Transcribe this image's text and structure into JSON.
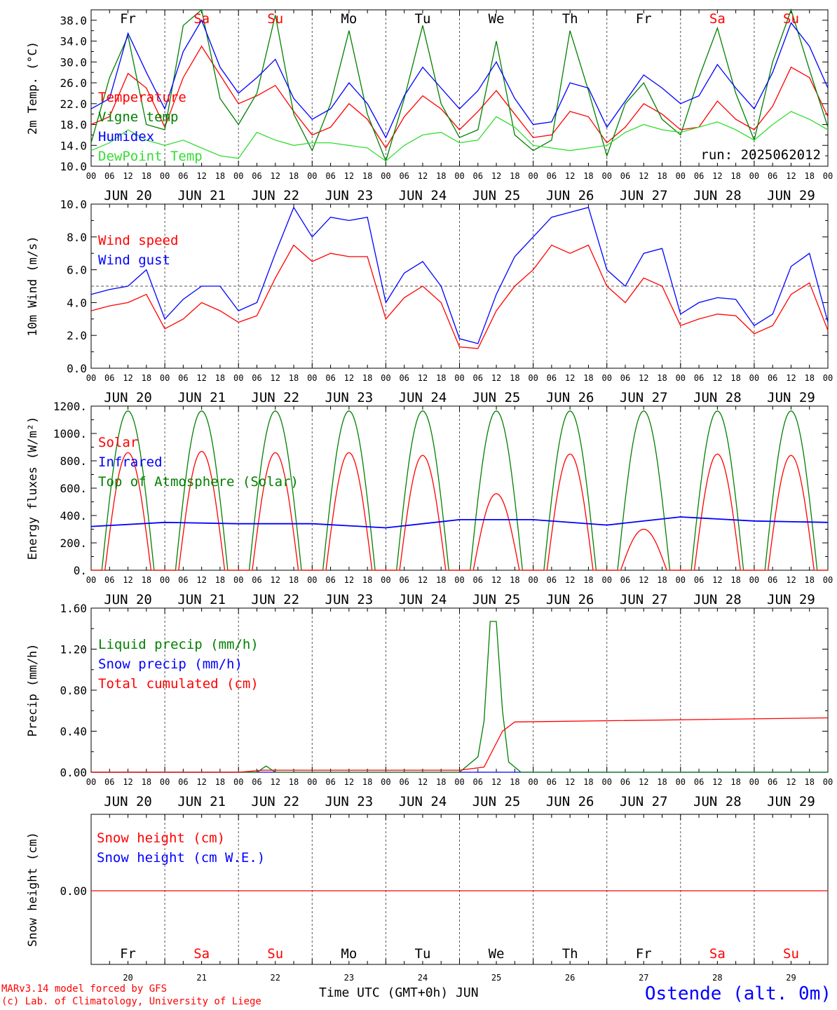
{
  "location": "Ostende (alt. 0m)",
  "footer": {
    "line1": "MARv3.14 model forced by GFS",
    "line2": "(c) Lab. of Climatology, University of Liege",
    "xaxis_title": "Time UTC (GMT+0h) JUN"
  },
  "colors": {
    "red": "#ff0000",
    "blue": "#0000ff",
    "green": "#008000",
    "lightgreen": "#33dd33",
    "grid": "#555555"
  },
  "time_axis": {
    "days": [
      "JUN 20",
      "JUN 21",
      "JUN 22",
      "JUN 23",
      "JUN 24",
      "JUN 25",
      "JUN 26",
      "JUN 27",
      "JUN 28",
      "JUN 29"
    ],
    "hours": [
      "00",
      "06",
      "12",
      "18"
    ],
    "end_hour": "00",
    "weekdays": [
      "Fr",
      "Sa",
      "Su",
      "Mo",
      "Tu",
      "We",
      "Th",
      "Fr",
      "Sa",
      "Su"
    ],
    "weekend_indices": [
      1,
      2,
      8,
      9
    ],
    "day_numbers": [
      "20",
      "21",
      "22",
      "23",
      "24",
      "25",
      "26",
      "27",
      "28",
      "29"
    ]
  },
  "chart_data": [
    {
      "id": "temperature",
      "type": "line",
      "ylabel": "2m Temp. (°C)",
      "ylim": [
        10,
        40
      ],
      "yticks": [
        "10.0",
        "14.0",
        "18.0",
        "22.0",
        "26.0",
        "30.0",
        "34.0",
        "38.0"
      ],
      "ytick_values": [
        10,
        14,
        18,
        22,
        26,
        30,
        34,
        38
      ],
      "run_label": "run: 2025062012",
      "x_hours": [
        0,
        6,
        12,
        18,
        24,
        30,
        36,
        42,
        48,
        54,
        60,
        66,
        72,
        78,
        84,
        90,
        96,
        102,
        108,
        114,
        120,
        126,
        132,
        138,
        144,
        150,
        156,
        162,
        168,
        174,
        180,
        186,
        192,
        198,
        204,
        210,
        216,
        222,
        228,
        234,
        240
      ],
      "series": [
        {
          "name": "Temperature",
          "color": "#ff0000",
          "values": [
            18.0,
            19.5,
            27.8,
            25.0,
            17.5,
            27.0,
            33.0,
            27.5,
            22.0,
            23.5,
            25.5,
            20.5,
            16.0,
            17.5,
            22.0,
            19.0,
            13.5,
            19.5,
            23.5,
            21.0,
            17.0,
            20.5,
            24.5,
            20.0,
            15.5,
            16.0,
            20.5,
            19.5,
            14.5,
            17.5,
            22.0,
            20.0,
            17.0,
            17.5,
            22.5,
            19.0,
            17.0,
            21.5,
            29.0,
            27.0,
            19.5
          ]
        },
        {
          "name": "Vigne temp",
          "color": "#008000",
          "values": [
            14.5,
            27.0,
            35.0,
            18.0,
            17.0,
            37.0,
            40.0,
            23.0,
            18.0,
            24.0,
            39.0,
            20.0,
            13.0,
            22.0,
            36.0,
            20.0,
            11.0,
            23.0,
            37.0,
            22.0,
            15.5,
            17.0,
            34.0,
            16.0,
            13.0,
            15.0,
            36.0,
            24.5,
            12.0,
            22.0,
            26.0,
            19.0,
            16.0,
            27.0,
            36.5,
            24.0,
            15.0,
            30.0,
            40.0,
            28.5,
            17.5
          ]
        },
        {
          "name": "Humidex",
          "color": "#0000ff",
          "values": [
            21.0,
            23.0,
            35.5,
            28.0,
            21.0,
            32.0,
            38.0,
            29.0,
            24.0,
            27.0,
            30.5,
            23.0,
            19.0,
            21.0,
            26.0,
            22.0,
            15.5,
            23.5,
            29.0,
            25.0,
            21.0,
            24.5,
            30.0,
            23.0,
            18.0,
            18.5,
            26.0,
            25.0,
            17.5,
            22.5,
            27.5,
            25.0,
            22.0,
            23.5,
            29.5,
            25.0,
            21.0,
            28.0,
            37.5,
            33.0,
            25.0
          ]
        },
        {
          "name": "DewPoint Temp",
          "color": "#33dd33",
          "values": [
            13.0,
            14.5,
            17.0,
            15.0,
            14.0,
            15.0,
            13.5,
            12.0,
            11.5,
            16.5,
            15.0,
            14.0,
            14.5,
            14.5,
            14.0,
            13.5,
            11.0,
            14.0,
            16.0,
            16.5,
            14.5,
            15.0,
            19.5,
            17.5,
            14.0,
            13.5,
            13.0,
            13.5,
            14.0,
            16.5,
            18.0,
            17.0,
            16.5,
            17.5,
            18.5,
            17.0,
            15.0,
            18.0,
            20.5,
            19.0,
            17.0
          ]
        }
      ]
    },
    {
      "id": "wind",
      "type": "line",
      "ylabel": "10m Wind (m/s)",
      "ylim": [
        0,
        10
      ],
      "yticks": [
        "0.0",
        "2.0",
        "4.0",
        "6.0",
        "8.0",
        "10.0"
      ],
      "ytick_values": [
        0,
        2,
        4,
        6,
        8,
        10
      ],
      "reference_line": 5,
      "x_hours": [
        0,
        6,
        12,
        18,
        24,
        30,
        36,
        42,
        48,
        54,
        60,
        66,
        72,
        78,
        84,
        90,
        96,
        102,
        108,
        114,
        120,
        126,
        132,
        138,
        144,
        150,
        156,
        162,
        168,
        174,
        180,
        186,
        192,
        198,
        204,
        210,
        216,
        222,
        228,
        234,
        240
      ],
      "series": [
        {
          "name": "Wind speed",
          "color": "#ff0000",
          "values": [
            3.5,
            3.8,
            4.0,
            4.5,
            2.4,
            3.0,
            4.0,
            3.5,
            2.8,
            3.2,
            5.5,
            7.5,
            6.5,
            7.0,
            6.8,
            6.8,
            3.0,
            4.3,
            5.0,
            4.0,
            1.3,
            1.2,
            3.5,
            5.0,
            6.0,
            7.5,
            7.0,
            7.5,
            5.0,
            4.0,
            5.5,
            5.0,
            2.6,
            3.0,
            3.3,
            3.2,
            2.1,
            2.6,
            4.5,
            5.2,
            2.3
          ]
        },
        {
          "name": "Wind gust",
          "color": "#0000ff",
          "values": [
            4.5,
            4.8,
            5.0,
            6.0,
            3.0,
            4.2,
            5.0,
            5.0,
            3.5,
            4.0,
            7.0,
            9.8,
            8.0,
            9.2,
            9.0,
            9.2,
            4.0,
            5.8,
            6.5,
            5.0,
            1.8,
            1.5,
            4.5,
            6.8,
            8.0,
            9.2,
            9.5,
            9.8,
            6.0,
            5.0,
            7.0,
            7.3,
            3.3,
            4.0,
            4.3,
            4.2,
            2.6,
            3.3,
            6.2,
            7.0,
            2.8
          ]
        }
      ]
    },
    {
      "id": "energy",
      "type": "line",
      "ylabel": "Energy fluxes (W/m²)",
      "ylim": [
        0,
        1200
      ],
      "yticks": [
        "0.",
        "200.",
        "400.",
        "600.",
        "800.",
        "1000.",
        "1200."
      ],
      "ytick_values": [
        0,
        200,
        400,
        600,
        800,
        1000,
        1200
      ],
      "day_peaks": {
        "solar": [
          860,
          870,
          860,
          860,
          840,
          560,
          850,
          300,
          850,
          840
        ],
        "toa": [
          1165,
          1165,
          1165,
          1165,
          1165,
          1165,
          1165,
          1165,
          1165,
          1165
        ]
      },
      "series": [
        {
          "name": "Solar",
          "color": "#ff0000"
        },
        {
          "name": "Infrared",
          "color": "#0000ff",
          "x_hours": [
            0,
            24,
            48,
            72,
            96,
            120,
            144,
            168,
            192,
            216,
            240
          ],
          "values": [
            320,
            350,
            340,
            340,
            310,
            370,
            370,
            330,
            390,
            360,
            350
          ]
        },
        {
          "name": "Top of Atmosphere (Solar)",
          "color": "#008000"
        }
      ]
    },
    {
      "id": "precip",
      "type": "line",
      "ylabel": "Precip (mm/h)",
      "ylim": [
        0,
        1.6
      ],
      "yticks": [
        "0.00",
        "0.40",
        "0.80",
        "1.20",
        "1.60"
      ],
      "ytick_values": [
        0,
        0.4,
        0.8,
        1.2,
        1.6
      ],
      "series": [
        {
          "name": "Liquid precip (mm/h)",
          "color": "#008000",
          "x_hours": [
            0,
            54,
            57,
            60,
            120,
            126,
            128,
            130,
            132,
            134,
            136,
            140,
            240
          ],
          "values": [
            0,
            0,
            0.06,
            0,
            0,
            0.15,
            0.5,
            1.47,
            1.47,
            0.6,
            0.1,
            0,
            0
          ]
        },
        {
          "name": "Snow precip (mm/h)",
          "color": "#0000ff",
          "x_hours": [
            0,
            240
          ],
          "values": [
            0,
            0
          ]
        },
        {
          "name": "Total cumulated (cm)",
          "color": "#ff0000",
          "x_hours": [
            0,
            48,
            56,
            120,
            128,
            134,
            138,
            240
          ],
          "values": [
            0,
            0,
            0.02,
            0.02,
            0.05,
            0.4,
            0.49,
            0.53
          ]
        }
      ]
    },
    {
      "id": "snow",
      "type": "line",
      "ylabel": "Snow height (cm)",
      "yticks": [
        "0.00"
      ],
      "series": [
        {
          "name": "Snow height (cm)",
          "color": "#ff0000",
          "x_hours": [
            0,
            240
          ],
          "values": [
            0,
            0
          ]
        },
        {
          "name": "Snow height (cm W.E.)",
          "color": "#0000ff",
          "x_hours": [
            0,
            240
          ],
          "values": [
            0,
            0
          ]
        }
      ]
    }
  ]
}
